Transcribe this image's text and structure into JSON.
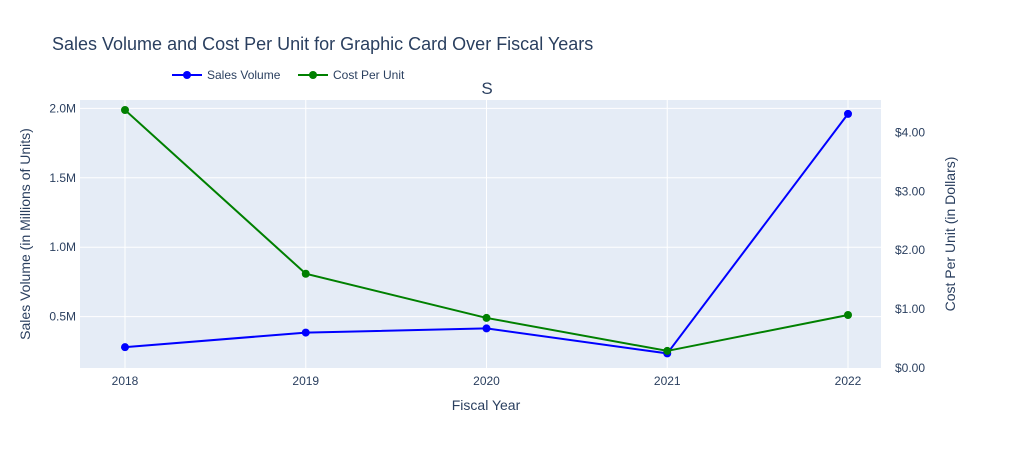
{
  "chart_data": {
    "type": "line",
    "title": "Sales Volume and Cost Per Unit for Graphic Card Over Fiscal Years",
    "subtitle": "S",
    "xlabel": "Fiscal Year",
    "ylabel": "Sales Volume (in Millions of Units)",
    "y2label": "Cost Per Unit (in Dollars)",
    "x": [
      "2018",
      "2019",
      "2020",
      "2021",
      "2022"
    ],
    "y_ticks": [
      "0.5M",
      "1.0M",
      "1.5M",
      "2.0M"
    ],
    "y_tick_values": [
      0.5,
      1.0,
      1.5,
      2.0
    ],
    "y2_ticks": [
      "$0.00",
      "$1.00",
      "$2.00",
      "$3.00",
      "$4.00"
    ],
    "y2_tick_values": [
      0,
      1,
      2,
      3,
      4
    ],
    "ylim": [
      0.13,
      2.06
    ],
    "y2lim": [
      0,
      4.55
    ],
    "legend_position": "top-left",
    "grid": true,
    "series": [
      {
        "name": "Sales Volume",
        "axis": "y",
        "color": "#0000ff",
        "values": [
          0.28,
          0.385,
          0.415,
          0.235,
          1.96
        ]
      },
      {
        "name": "Cost Per Unit",
        "axis": "y2",
        "color": "#008000",
        "values": [
          4.38,
          1.6,
          0.85,
          0.29,
          0.9
        ]
      }
    ]
  }
}
